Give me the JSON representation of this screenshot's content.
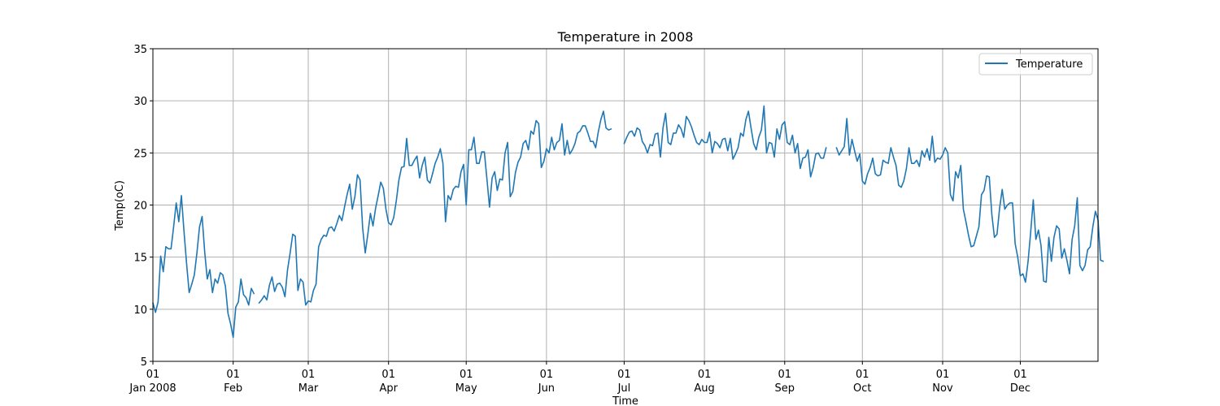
{
  "chart_data": {
    "type": "line",
    "title": "Temperature in 2008",
    "xlabel": "Time",
    "ylabel": "Temp(oC)",
    "xlim": [
      "2008-01-01",
      "2008-12-31"
    ],
    "ylim": [
      5,
      35
    ],
    "y_ticks": [
      5,
      10,
      15,
      20,
      25,
      30,
      35
    ],
    "x_ticks": [
      {
        "date": "2008-01-01",
        "line1": "01",
        "line2": "Jan 2008"
      },
      {
        "date": "2008-02-01",
        "line1": "01",
        "line2": "Feb"
      },
      {
        "date": "2008-03-01",
        "line1": "01",
        "line2": "Mar"
      },
      {
        "date": "2008-04-01",
        "line1": "01",
        "line2": "Apr"
      },
      {
        "date": "2008-05-01",
        "line1": "01",
        "line2": "May"
      },
      {
        "date": "2008-06-01",
        "line1": "01",
        "line2": "Jun"
      },
      {
        "date": "2008-07-01",
        "line1": "01",
        "line2": "Jul"
      },
      {
        "date": "2008-08-01",
        "line1": "01",
        "line2": "Aug"
      },
      {
        "date": "2008-09-01",
        "line1": "01",
        "line2": "Sep"
      },
      {
        "date": "2008-10-01",
        "line1": "01",
        "line2": "Oct"
      },
      {
        "date": "2008-11-01",
        "line1": "01",
        "line2": "Nov"
      },
      {
        "date": "2008-12-01",
        "line1": "01",
        "line2": "Dec"
      }
    ],
    "grid": true,
    "legend_position": "top-right",
    "series": [
      {
        "name": "Temperature",
        "color": "#1f77b4",
        "segments": [
          {
            "start": "2008-01-01",
            "values": [
              10.6,
              9.7,
              10.7,
              15.1,
              13.6,
              16.0,
              15.8,
              15.8,
              17.9,
              20.2,
              18.4,
              20.9,
              17.5,
              14.4,
              11.6,
              12.4,
              13.3,
              15.4,
              17.9,
              18.9,
              15.5,
              12.9,
              13.8,
              11.6,
              12.9,
              12.5,
              13.5,
              13.3,
              12.2,
              9.6,
              8.6,
              7.3,
              10.2,
              10.7,
              12.9,
              11.4,
              11.1,
              10.4,
              12.0,
              11.5
            ]
          },
          {
            "start": "2008-02-11",
            "values": [
              10.6,
              10.9,
              11.3,
              10.9,
              12.3,
              13.1,
              11.7,
              12.4,
              12.5,
              12.1,
              11.2,
              13.8,
              15.4,
              17.2,
              17.0,
              11.8,
              12.9,
              12.6,
              10.4,
              10.8,
              10.7,
              11.8,
              12.4,
              16.0,
              16.7,
              17.1,
              17.0,
              17.8,
              17.9,
              17.5,
              18.2,
              19.0,
              18.5,
              19.8,
              21.0,
              22.0,
              19.6,
              20.8,
              22.9,
              22.4,
              17.8,
              15.4,
              17.2,
              19.2,
              18.0,
              19.7,
              20.9,
              22.2,
              21.6,
              19.6,
              18.3,
              18.1,
              18.8,
              20.4,
              22.4,
              23.6,
              23.7,
              26.4,
              23.8,
              23.8,
              24.3,
              24.7,
              22.6,
              23.8,
              24.6,
              22.4,
              22.1,
              23.0,
              24.0,
              24.6,
              25.4,
              24.0,
              18.4,
              20.9,
              20.5,
              21.5,
              21.8,
              21.7,
              23.2,
              23.9,
              20.0,
              25.3,
              25.3,
              26.5,
              24.0,
              24.0,
              25.1,
              25.1,
              22.5,
              19.8,
              22.6,
              23.2,
              21.4,
              22.5,
              22.4,
              25.0,
              26.0,
              20.8,
              21.3,
              23.1,
              24.1,
              24.6,
              25.9,
              26.2,
              25.3,
              27.1,
              26.8,
              28.1,
              27.8,
              23.6,
              24.2,
              25.4,
              25.0,
              26.5,
              25.3,
              26.0,
              26.2,
              27.8,
              24.8,
              26.2,
              24.9,
              25.3,
              25.9,
              26.9,
              27.1,
              27.6,
              27.6,
              26.9,
              26.1,
              26.1,
              25.5,
              27.0,
              28.2,
              29.0,
              27.4,
              27.2,
              27.3
            ]
          },
          {
            "start": "2008-07-01",
            "values": [
              25.9,
              26.5,
              27.0,
              27.1,
              26.6,
              27.4,
              27.2,
              26.1,
              25.7,
              25.0,
              25.8,
              25.7,
              26.8,
              26.9,
              24.6,
              27.4,
              28.8,
              26.0,
              25.8,
              26.9,
              26.9,
              27.7,
              27.3,
              26.5,
              28.5,
              28.1,
              27.5,
              26.7,
              26.0,
              25.8,
              26.3,
              26.0,
              26.0,
              27.0,
              25.0,
              26.1,
              25.9,
              25.5,
              26.3,
              26.4,
              25.2,
              26.4,
              24.4,
              24.9,
              25.5,
              26.9,
              26.6,
              28.2,
              29.0,
              27.4,
              25.9,
              25.3,
              26.5,
              27.2,
              29.5,
              25.0,
              26.0,
              25.9,
              24.6,
              27.3,
              26.3,
              27.7,
              28.0,
              26.0,
              25.8,
              26.7,
              25.0,
              25.9,
              23.5,
              24.5,
              24.6,
              25.3,
              22.7,
              23.6,
              24.9,
              25.0,
              24.5,
              24.5,
              25.5
            ]
          }
        ]
      },
      {
        "name": "",
        "color": "#1f77b4",
        "segments": [
          {
            "start": "2008-09-21",
            "values": [
              25.5,
              24.8,
              25.2,
              25.6,
              28.3,
              24.8,
              26.3,
              25.2,
              24.2,
              24.9,
              22.3,
              22.0,
              23.0,
              23.6,
              24.5,
              23.0,
              22.8,
              22.9,
              24.3,
              24.1,
              24.0,
              25.5,
              24.6,
              23.8,
              21.9,
              21.7,
              22.3,
              23.5,
              25.5,
              24.0,
              24.0,
              24.3,
              23.7,
              25.2,
              24.6,
              25.4,
              24.3,
              26.6,
              24.1,
              24.5,
              24.4,
              24.8,
              25.5,
              25.0,
              21.0,
              20.4,
              23.2,
              22.6,
              23.8,
              19.6,
              18.4,
              17.1,
              16.0,
              16.1,
              17.0,
              17.9,
              21.0,
              21.4,
              22.8,
              22.7,
              19.1,
              16.9,
              17.2,
              19.7,
              21.5,
              19.6,
              20.0,
              20.2,
              20.2,
              16.3,
              15.0,
              13.2,
              13.4,
              12.6,
              14.6,
              17.4,
              20.5,
              16.7,
              17.6,
              16.1,
              12.7,
              12.6,
              16.9,
              14.6,
              16.9,
              18.0,
              17.7,
              14.9,
              15.8,
              14.7,
              13.4,
              16.7,
              18.0,
              20.7,
              14.2,
              13.7,
              14.2,
              15.7,
              16.0,
              17.9,
              19.4,
              18.6,
              14.7,
              14.6
            ]
          }
        ]
      }
    ]
  }
}
